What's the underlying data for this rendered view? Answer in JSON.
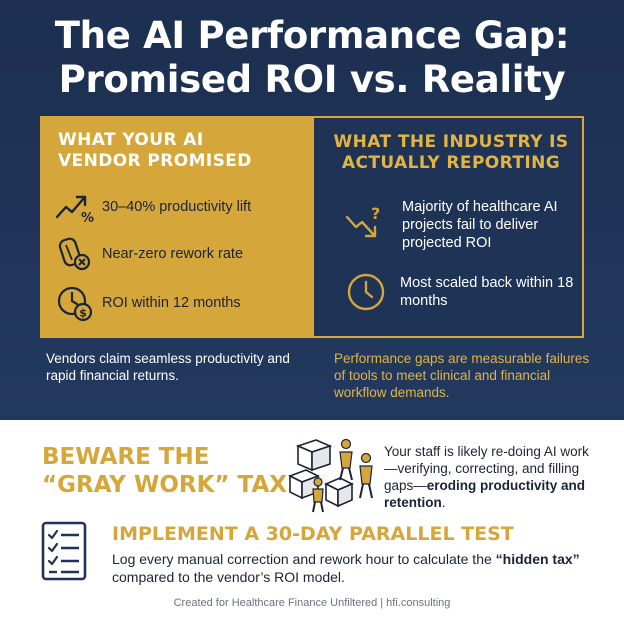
{
  "title": {
    "line1": "The AI Performance Gap:",
    "line2": "Promised ROI vs. Reality"
  },
  "promised": {
    "heading_line1": "WHAT YOUR AI",
    "heading_line2": "VENDOR PROMISED",
    "items": [
      {
        "icon": "productivity-trend-icon",
        "text": "30–40% productivity lift"
      },
      {
        "icon": "rework-icon",
        "text": "Near-zero rework rate"
      },
      {
        "icon": "clock-dollar-icon",
        "text": "ROI within 12 months"
      }
    ],
    "caption": "Vendors claim seamless productivity and rapid financial returns."
  },
  "reality": {
    "heading_line1": "WHAT THE INDUSTRY IS",
    "heading_line2": "ACTUALLY REPORTING",
    "items": [
      {
        "icon": "declining-trend-question-icon",
        "text": "Majority of healthcare AI projects fail to deliver projected ROI"
      },
      {
        "icon": "clock-icon",
        "text": "Most scaled back within 18 months"
      }
    ],
    "caption": "Performance gaps are measurable failures of tools to meet clinical and financial workflow demands."
  },
  "gray_work": {
    "heading_line1": "BEWARE THE",
    "heading_line2": "“GRAY WORK” TAX",
    "illustration": "people-moving-blocks-icon",
    "text_plain": "Your staff is likely re-doing AI work—verifying, correcting, and filling gaps—",
    "text_bold": "eroding productivity and retention",
    "text_end": "."
  },
  "parallel_test": {
    "icon": "checklist-icon",
    "heading": "IMPLEMENT A 30-DAY PARALLEL TEST",
    "text_start": "Log every manual correction and rework hour to calculate the ",
    "text_bold": "“hidden tax”",
    "text_end": " compared to the vendor’s ROI model."
  },
  "footer": "Created for Healthcare Finance Unfiltered | hfi.consulting",
  "colors": {
    "navy": "#1e3355",
    "gold": "#d5a63a",
    "gold_text": "#e2b443",
    "dark_text": "#1b2437"
  }
}
